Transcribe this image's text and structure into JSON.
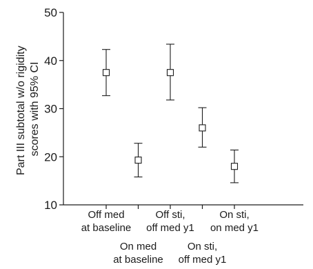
{
  "chart_data": {
    "type": "scatter",
    "ylabel_line1": "Part III subtotal w/o rigidity",
    "ylabel_line2": "scores with 95% CI",
    "ylim": [
      10,
      50
    ],
    "yticks": [
      10,
      20,
      30,
      40,
      50
    ],
    "grid": false,
    "categories": [
      {
        "line1": "Off med",
        "line2": "at baseline",
        "row": "upper"
      },
      {
        "line1": "On med",
        "line2": "at baseline",
        "row": "lower"
      },
      {
        "line1": "Off sti,",
        "line2": "off med y1",
        "row": "upper"
      },
      {
        "line1": "On sti,",
        "line2": "off med y1",
        "row": "lower"
      },
      {
        "line1": "On sti,",
        "line2": "on med y1",
        "row": "upper"
      }
    ],
    "points": [
      {
        "mean": 37.5,
        "lower": 32.7,
        "upper": 42.3
      },
      {
        "mean": 19.3,
        "lower": 15.8,
        "upper": 22.8
      },
      {
        "mean": 37.5,
        "lower": 31.8,
        "upper": 43.4
      },
      {
        "mean": 26.0,
        "lower": 22.0,
        "upper": 30.2
      },
      {
        "mean": 18.0,
        "lower": 14.6,
        "upper": 21.4
      }
    ],
    "marker": "open-square"
  }
}
